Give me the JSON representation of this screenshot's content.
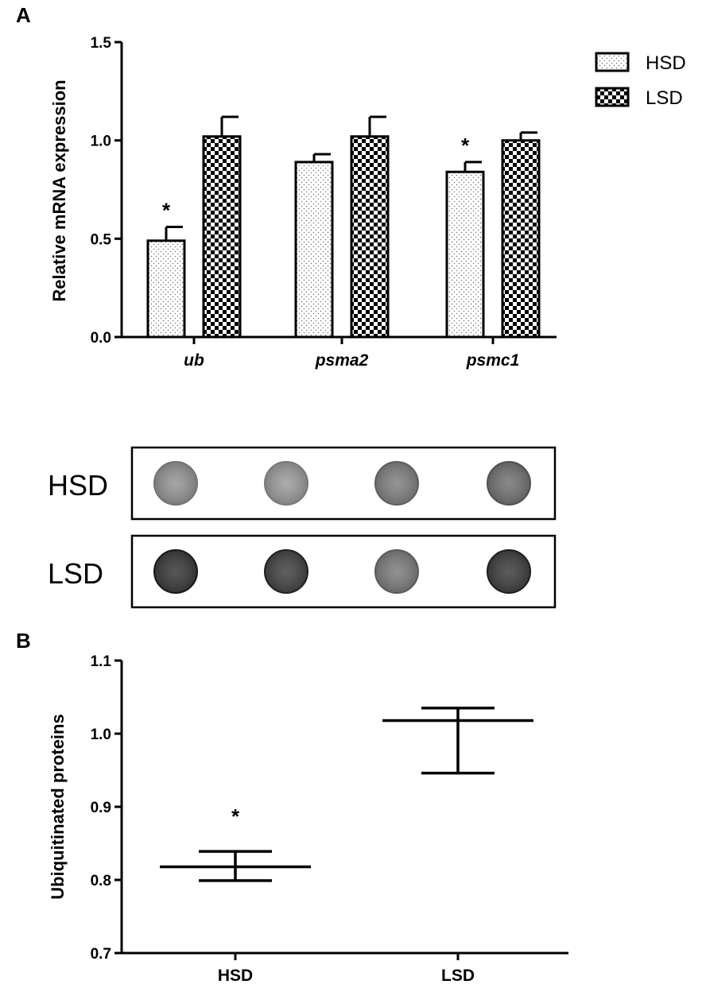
{
  "panels": {
    "a": "A",
    "b": "B"
  },
  "colors": {
    "ink": "#000000",
    "hsd_fill": "#ffffff",
    "lsd_fill": "#000000",
    "dot_light": "#9a9a9a",
    "dot_dark": "#3a3a3a"
  },
  "chart_data": [
    {
      "type": "bar",
      "ylabel": "Relative mRNA expression",
      "ylim": [
        0,
        1.5
      ],
      "yticks": [
        "0.0",
        "0.5",
        "1.0",
        "1.5"
      ],
      "categories": [
        "ub",
        "psma2",
        "psmc1"
      ],
      "series": [
        {
          "name": "HSD",
          "values": [
            0.49,
            0.89,
            0.84
          ],
          "errors": [
            0.07,
            0.04,
            0.05
          ],
          "pattern": "dots"
        },
        {
          "name": "LSD",
          "values": [
            1.02,
            1.02,
            1.0
          ],
          "errors": [
            0.1,
            0.1,
            0.04
          ],
          "pattern": "checker"
        }
      ],
      "significance": [
        {
          "category": "ub",
          "series": "HSD",
          "mark": "*"
        },
        {
          "category": "psmc1",
          "series": "HSD",
          "mark": "*"
        }
      ],
      "legend": "top-right"
    },
    {
      "type": "scatter",
      "ylabel": "Ubiquitinated proteins",
      "ylim": [
        0.7,
        1.1
      ],
      "yticks": [
        "0.7",
        "0.8",
        "0.9",
        "1.0",
        "1.1"
      ],
      "categories": [
        "HSD",
        "LSD"
      ],
      "means": [
        0.818,
        1.018
      ],
      "upper": [
        0.839,
        1.035
      ],
      "lower": [
        0.799,
        0.946
      ],
      "significance": [
        {
          "category": "HSD",
          "mark": "*"
        }
      ]
    }
  ],
  "blot": {
    "rows": [
      {
        "label": "HSD",
        "dots": [
          0.38,
          0.34,
          0.48,
          0.55
        ]
      },
      {
        "label": "LSD",
        "dots": [
          0.85,
          0.8,
          0.5,
          0.82
        ]
      }
    ]
  }
}
